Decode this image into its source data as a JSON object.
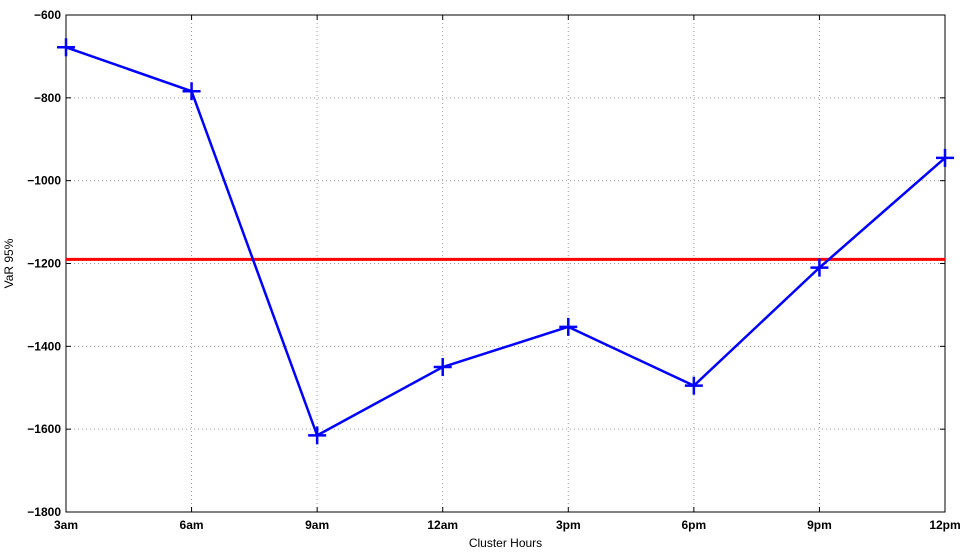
{
  "chart_data": {
    "type": "line",
    "title": "",
    "xlabel": "Cluster Hours",
    "ylabel": "VaR 95%",
    "categories": [
      "3am",
      "6am",
      "9am",
      "12am",
      "3pm",
      "6pm",
      "9pm",
      "12pm"
    ],
    "ylim": [
      -1800,
      -600
    ],
    "yticks": [
      -600,
      -800,
      -1000,
      -1200,
      -1400,
      -1600,
      -1800
    ],
    "grid": true,
    "series": [
      {
        "values": [
          -678,
          -784,
          -1615,
          -1450,
          -1353,
          -1495,
          -1210,
          -945
        ],
        "color": "#0000ff",
        "marker": "plus"
      }
    ],
    "reference_lines": [
      {
        "value": -1190,
        "color": "#ff0000"
      }
    ]
  }
}
